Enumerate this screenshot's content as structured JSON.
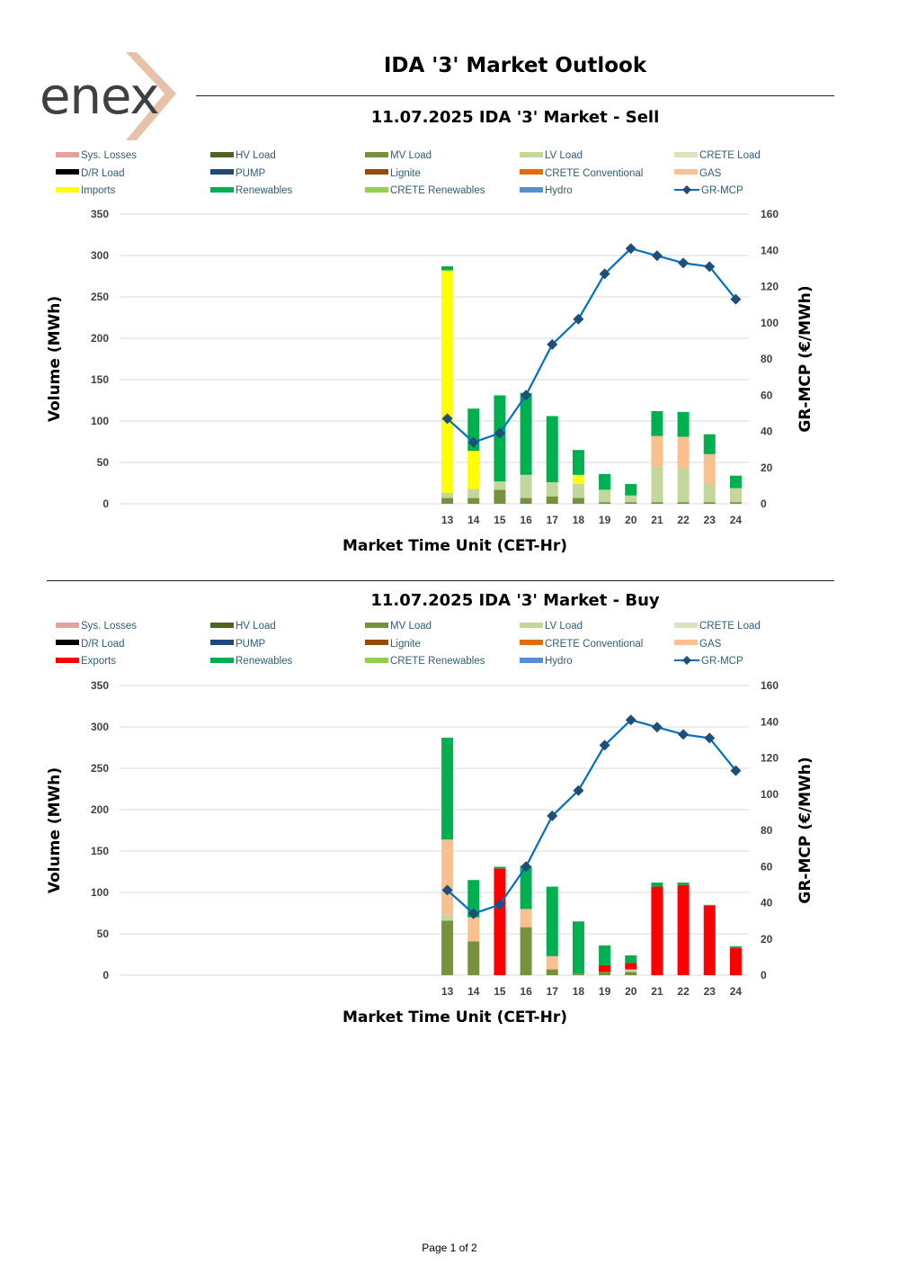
{
  "header": {
    "logo_text": "enex",
    "title": "IDA '3' Market Outlook"
  },
  "footer": {
    "page_label": "Page 1 of 2"
  },
  "colors": {
    "Sys. Losses": "#e6a0a0",
    "HV Load": "#4f6228",
    "MV Load": "#76923c",
    "LV Load": "#c3d69b",
    "CRETE Load": "#d7e4bd",
    "D/R Load": "#000000",
    "PUMP": "#1f497d",
    "Lignite": "#984807",
    "CRETE Conventional": "#e36c09",
    "GAS": "#fac090",
    "Imports": "#ffff00",
    "Exports": "#ff0000",
    "Renewables": "#00b050",
    "CRETE Renewables": "#92d050",
    "Hydro": "#558ed5",
    "GR-MCP": "#0070c0",
    "GR-MCP-marker": "#1f4e79",
    "grid": "#d9d9d9",
    "axis_text": "#404040"
  },
  "chart_data": [
    {
      "id": "sell",
      "type": "bar",
      "title": "11.07.2025  IDA '3' Market - Sell",
      "xlabel": "Market Time Unit (CET-Hr)",
      "ylabel": "Volume (MWh)",
      "y2label": "GR-MCP (€/MWh)",
      "ylim": [
        0,
        350
      ],
      "y_ticks": [
        0,
        50,
        100,
        150,
        200,
        250,
        300,
        350
      ],
      "y2lim": [
        0,
        160
      ],
      "y2_ticks": [
        0,
        20,
        40,
        60,
        80,
        100,
        120,
        140,
        160
      ],
      "categories": [
        "13",
        "14",
        "15",
        "16",
        "17",
        "18",
        "19",
        "20",
        "21",
        "22",
        "23",
        "24"
      ],
      "legend": [
        "Sys. Losses",
        "HV Load",
        "MV Load",
        "LV Load",
        "CRETE Load",
        "D/R Load",
        "PUMP",
        "Lignite",
        "CRETE Conventional",
        "GAS",
        "Imports",
        "Renewables",
        "CRETE Renewables",
        "Hydro",
        "GR-MCP"
      ],
      "series": [
        {
          "name": "MV Load",
          "values": [
            7,
            7,
            17,
            7,
            9,
            7,
            2,
            2,
            2,
            2,
            2,
            2
          ]
        },
        {
          "name": "LV Load",
          "values": [
            6,
            11,
            10,
            28,
            17,
            17,
            15,
            8,
            43,
            41,
            22,
            17
          ]
        },
        {
          "name": "GAS",
          "values": [
            0,
            0,
            0,
            0,
            0,
            0,
            0,
            0,
            37,
            38,
            36,
            0
          ]
        },
        {
          "name": "Imports",
          "values": [
            269,
            46,
            0,
            0,
            0,
            11,
            0,
            0,
            0,
            0,
            0,
            0
          ]
        },
        {
          "name": "Renewables",
          "values": [
            5,
            51,
            104,
            99,
            80,
            30,
            19,
            14,
            30,
            30,
            24,
            15
          ]
        }
      ],
      "line": {
        "name": "GR-MCP",
        "values": [
          47,
          34,
          39,
          60,
          88,
          102,
          127,
          141,
          137,
          133,
          131,
          113
        ]
      }
    },
    {
      "id": "buy",
      "type": "bar",
      "title": "11.07.2025  IDA '3' Market - Buy",
      "xlabel": "Market Time Unit (CET-Hr)",
      "ylabel": "Volume (MWh)",
      "y2label": "GR-MCP (€/MWh)",
      "ylim": [
        0,
        350
      ],
      "y_ticks": [
        0,
        50,
        100,
        150,
        200,
        250,
        300,
        350
      ],
      "y2lim": [
        0,
        160
      ],
      "y2_ticks": [
        0,
        20,
        40,
        60,
        80,
        100,
        120,
        140,
        160
      ],
      "categories": [
        "13",
        "14",
        "15",
        "16",
        "17",
        "18",
        "19",
        "20",
        "21",
        "22",
        "23",
        "24"
      ],
      "legend": [
        "Sys. Losses",
        "HV Load",
        "MV Load",
        "LV Load",
        "CRETE Load",
        "D/R Load",
        "PUMP",
        "Lignite",
        "CRETE Conventional",
        "GAS",
        "Exports",
        "Renewables",
        "CRETE Renewables",
        "Hydro",
        "GR-MCP"
      ],
      "series": [
        {
          "name": "MV Load",
          "values": [
            66,
            41,
            0,
            58,
            7,
            2,
            4,
            4,
            0,
            0,
            0,
            0
          ]
        },
        {
          "name": "LV Load",
          "values": [
            7,
            0,
            0,
            0,
            0,
            0,
            0,
            3,
            0,
            0,
            0,
            0
          ]
        },
        {
          "name": "GAS",
          "values": [
            91,
            29,
            0,
            22,
            16,
            0,
            0,
            0,
            0,
            0,
            0,
            0
          ]
        },
        {
          "name": "Exports",
          "values": [
            0,
            0,
            129,
            0,
            0,
            0,
            8,
            8,
            107,
            109,
            84,
            33
          ]
        },
        {
          "name": "Renewables",
          "values": [
            123,
            45,
            2,
            52,
            84,
            63,
            24,
            9,
            5,
            3,
            1,
            2
          ]
        }
      ],
      "line": {
        "name": "GR-MCP",
        "values": [
          47,
          34,
          39,
          60,
          88,
          102,
          127,
          141,
          137,
          133,
          131,
          113
        ]
      }
    }
  ]
}
